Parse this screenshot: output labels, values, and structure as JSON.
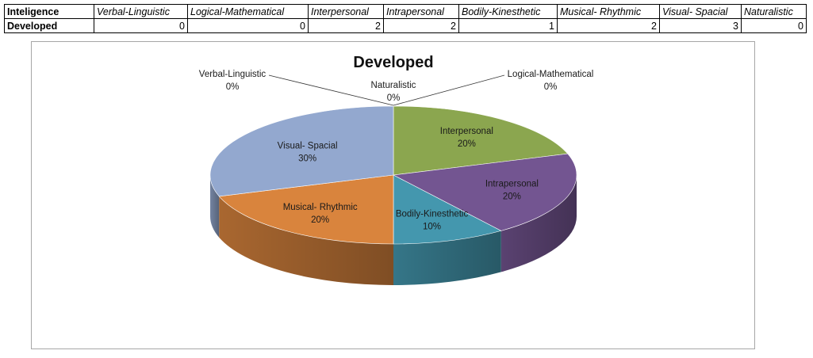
{
  "table": {
    "corner": "Inteligence",
    "row_label": "Developed",
    "headers": [
      "Verbal-Linguistic",
      "Logical-Mathematical",
      "Interpersonal",
      "Intrapersonal",
      "Bodily-Kinesthetic",
      "Musical- Rhythmic",
      "Visual- Spacial",
      "Naturalistic"
    ],
    "values": [
      "0",
      "0",
      "2",
      "2",
      "1",
      "2",
      "3",
      "0"
    ]
  },
  "chart_data": {
    "type": "pie",
    "title": "Developed",
    "categories": [
      "Verbal-Linguistic",
      "Logical-Mathematical",
      "Interpersonal",
      "Intrapersonal",
      "Bodily-Kinesthetic",
      "Musical- Rhythmic",
      "Visual- Spacial",
      "Naturalistic"
    ],
    "values": [
      0,
      0,
      2,
      2,
      1,
      2,
      3,
      0
    ],
    "percent_labels": [
      "0%",
      "0%",
      "20%",
      "20%",
      "10%",
      "20%",
      "30%",
      "0%"
    ],
    "colors": [
      "#4f81bd",
      "#c0504d",
      "#8ba64f",
      "#735591",
      "#4497ae",
      "#d9843d",
      "#93a8cf",
      "#9bbb59"
    ],
    "style": "3d-pie",
    "legend": "none"
  }
}
